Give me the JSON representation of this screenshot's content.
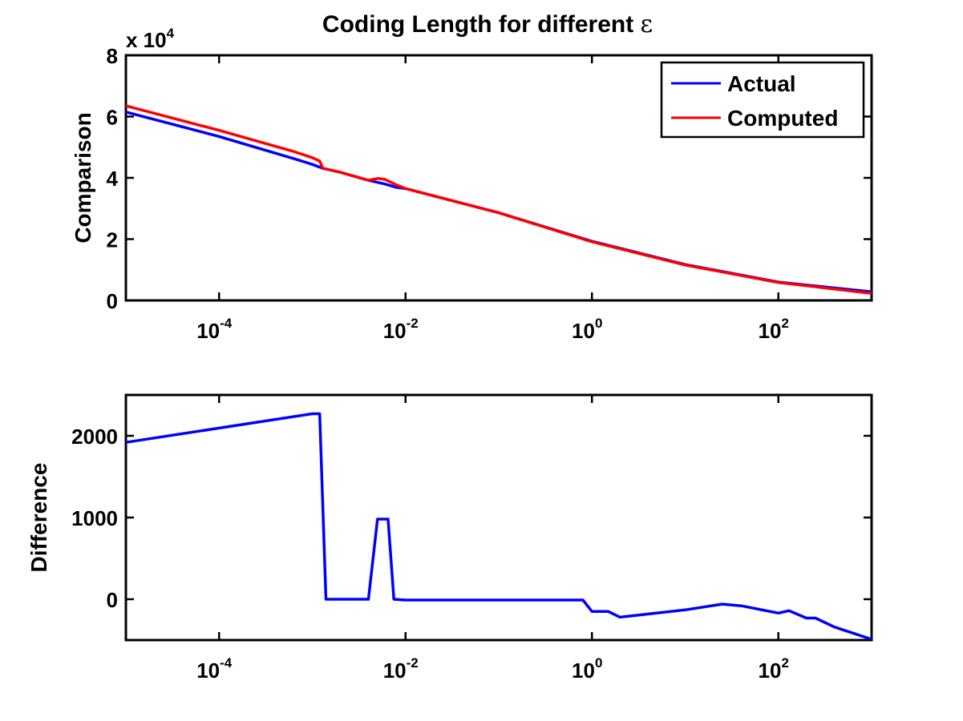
{
  "title_main": "Coding Length for different ",
  "title_symbol": "ε",
  "chart_data": [
    {
      "type": "line",
      "xscale": "log",
      "xlim": [
        1e-05,
        1000
      ],
      "ylim": [
        0,
        80000
      ],
      "ylabel": "Comparison",
      "exponent_label": {
        "base": "x 10",
        "exp": "4"
      },
      "xticks": [
        {
          "value": 0.0001,
          "base": "10",
          "exp": "-4"
        },
        {
          "value": 0.01,
          "base": "10",
          "exp": "-2"
        },
        {
          "value": 1,
          "base": "10",
          "exp": "0"
        },
        {
          "value": 100,
          "base": "10",
          "exp": "2"
        }
      ],
      "yticks": [
        {
          "value": 0,
          "label": "0"
        },
        {
          "value": 20000,
          "label": "2"
        },
        {
          "value": 40000,
          "label": "4"
        },
        {
          "value": 60000,
          "label": "6"
        },
        {
          "value": 80000,
          "label": "8"
        }
      ],
      "legend": {
        "placement": "top-right"
      },
      "series": [
        {
          "name": "Actual",
          "color": "#0000ff",
          "x": [
            1e-05,
            0.0001,
            0.00063,
            0.001,
            0.0013,
            0.002,
            0.004,
            0.006,
            0.008,
            0.01,
            0.1,
            1,
            10,
            100,
            1000
          ],
          "y": [
            61500,
            53500,
            46300,
            44400,
            43100,
            41800,
            39200,
            38000,
            36900,
            36500,
            28600,
            19300,
            11700,
            6000,
            2800
          ]
        },
        {
          "name": "Computed",
          "color": "#ff0000",
          "x": [
            1e-05,
            0.0001,
            0.00063,
            0.001,
            0.0012,
            0.0013,
            0.002,
            0.004,
            0.005,
            0.006,
            0.008,
            0.01,
            0.1,
            1,
            10,
            100,
            1000
          ],
          "y": [
            63500,
            55500,
            48600,
            46600,
            45500,
            43100,
            41800,
            39200,
            39800,
            39500,
            37700,
            36500,
            28600,
            19150,
            11550,
            5850,
            2300
          ]
        }
      ]
    },
    {
      "type": "line",
      "xscale": "log",
      "xlim": [
        1e-05,
        1000
      ],
      "ylim": [
        -500,
        2500
      ],
      "ylabel": "Difference",
      "xticks": [
        {
          "value": 0.0001,
          "base": "10",
          "exp": "-4"
        },
        {
          "value": 0.01,
          "base": "10",
          "exp": "-2"
        },
        {
          "value": 1,
          "base": "10",
          "exp": "0"
        },
        {
          "value": 100,
          "base": "10",
          "exp": "2"
        }
      ],
      "yticks": [
        {
          "value": 0,
          "label": "0"
        },
        {
          "value": 1000,
          "label": "1000"
        },
        {
          "value": 2000,
          "label": "2000"
        }
      ],
      "series": [
        {
          "color": "#0000ff",
          "x": [
            1e-05,
            0.001,
            0.0012,
            0.0014,
            0.004,
            0.005,
            0.0065,
            0.0075,
            0.01,
            0.1,
            0.8,
            1,
            1.5,
            2,
            10,
            25,
            40,
            100,
            130,
            200,
            250,
            400,
            1000
          ],
          "y": [
            1920,
            2270,
            2270,
            0,
            0,
            980,
            980,
            0,
            -10,
            -10,
            -10,
            -150,
            -150,
            -220,
            -130,
            -60,
            -80,
            -170,
            -140,
            -230,
            -230,
            -340,
            -490
          ]
        }
      ]
    }
  ]
}
